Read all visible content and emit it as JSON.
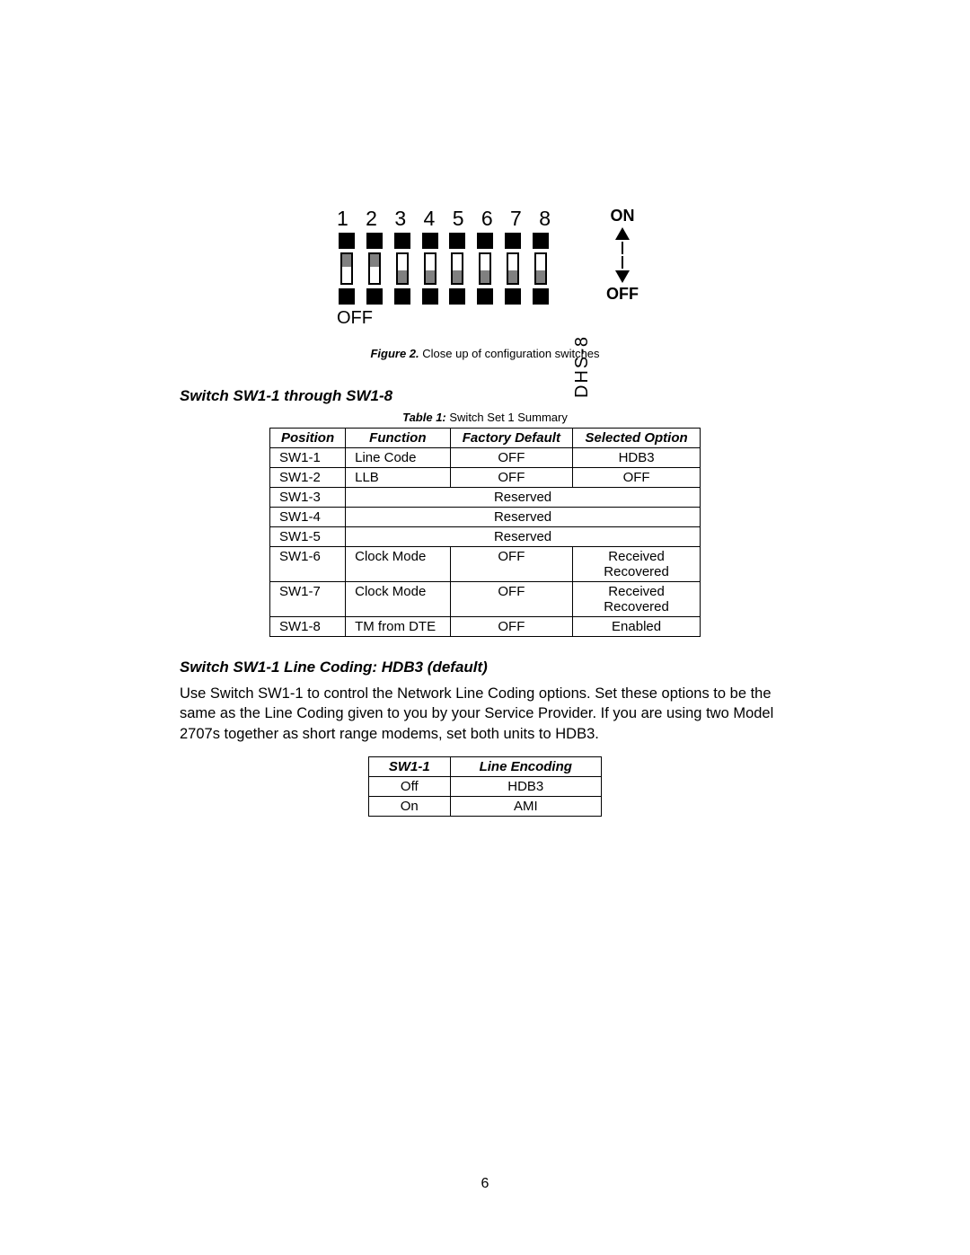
{
  "figure": {
    "numbers": [
      "1",
      "2",
      "3",
      "4",
      "5",
      "6",
      "7",
      "8"
    ],
    "switch_positions": [
      "top",
      "top",
      "bottom",
      "bottom",
      "bottom",
      "bottom",
      "bottom",
      "bottom"
    ],
    "off_label_left": "OFF",
    "dhs_label": "DHS-8",
    "on_label": "ON",
    "off_label_right": "OFF",
    "caption_bold": "Figure 2.",
    "caption_rest": " Close up of configuration switches",
    "colors": {
      "body": "#000000",
      "nub": "#808080",
      "bg": "#ffffff"
    }
  },
  "section1_heading": "Switch SW1-1 through SW1-8",
  "table1": {
    "caption_bold": "Table 1:",
    "caption_rest": " Switch Set 1 Summary",
    "headers": [
      "Position",
      "Function",
      "Factory Default",
      "Selected Option"
    ],
    "rows": [
      {
        "pos": "SW1-1",
        "fn": "Line Code",
        "fd": "OFF",
        "sel": "HDB3"
      },
      {
        "pos": "SW1-2",
        "fn": "LLB",
        "fd": "OFF",
        "sel": "OFF"
      },
      {
        "pos": "SW1-3",
        "reserved": "Reserved"
      },
      {
        "pos": "SW1-4",
        "reserved": "Reserved"
      },
      {
        "pos": "SW1-5",
        "reserved": "Reserved"
      },
      {
        "pos": "SW1-6",
        "fn": "Clock Mode",
        "fd": "OFF",
        "sel": "Received\nRecovered"
      },
      {
        "pos": "SW1-7",
        "fn": "Clock Mode",
        "fd": "OFF",
        "sel": "Received\nRecovered"
      },
      {
        "pos": "SW1-8",
        "fn": "TM from DTE",
        "fd": "OFF",
        "sel": "Enabled"
      }
    ]
  },
  "section2_heading": "Switch SW1-1 Line Coding:  HDB3  (default)",
  "paragraph": "Use Switch SW1-1 to control the Network Line Coding options.  Set these options to be the same as the Line Coding given to you by your Service Provider.  If you are using two Model 2707s together as short range modems, set both units  to HDB3.",
  "table2": {
    "headers": [
      "SW1-1",
      "Line Encoding"
    ],
    "rows": [
      {
        "a": "Off",
        "b": "HDB3"
      },
      {
        "a": "On",
        "b": "AMI"
      }
    ]
  },
  "page_number": "6"
}
